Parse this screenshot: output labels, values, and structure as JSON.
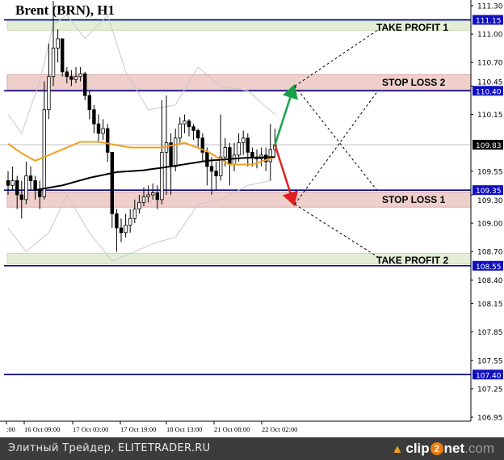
{
  "title": "Brent (BRN), H1",
  "footer": {
    "text": "Элитный Трейдер, ELITETRADER.RU",
    "logo": "clip2net.com",
    "logo_parts": [
      "clip",
      "2",
      "net",
      ".com"
    ]
  },
  "colors": {
    "tp_zone": "#e2efd6",
    "sl_zone": "#efcfcc",
    "level_line": "#00008b",
    "ma_fast": "#f0a020",
    "ma_slow": "#000000",
    "bands": "#c8c8c8",
    "up_arrow": "#1aa04a",
    "down_arrow": "#e02020",
    "price_line": "#c0c0c0"
  },
  "chart_data": {
    "type": "candlestick",
    "title": "Brent (BRN), H1",
    "ylim": [
      106.9,
      111.35
    ],
    "y_ticks": [
      "111.30",
      "111.00",
      "110.70",
      "110.45",
      "110.15",
      "109.83",
      "109.55",
      "109.30",
      "109.00",
      "108.70",
      "108.40",
      "108.15",
      "107.85",
      "107.55",
      "107.25",
      "106.95"
    ],
    "x_ticks": [
      ":00",
      "16 Oct 09:00",
      "17 Oct 03:00",
      "17 Oct 19:00",
      "18 Oct 13:00",
      "21 Oct 08:00",
      "22 Oct 02:00"
    ],
    "current_price": "109.83",
    "first_open": 109.45,
    "close": [
      109.4,
      109.45,
      109.3,
      109.25,
      109.5,
      109.45,
      109.35,
      109.28,
      110.2,
      110.55,
      110.85,
      110.95,
      110.6,
      110.55,
      110.52,
      110.55,
      110.58,
      110.35,
      110.2,
      110.05,
      109.95,
      110.0,
      109.75,
      109.1,
      108.95,
      108.9,
      108.98,
      109.05,
      109.15,
      109.22,
      109.28,
      109.3,
      109.32,
      109.25,
      109.75,
      109.85,
      109.6,
      109.9,
      110.05,
      110.08,
      110.02,
      109.98,
      109.9,
      109.75,
      109.6,
      109.55,
      109.5,
      109.7,
      109.8,
      109.62,
      109.72,
      109.85,
      109.9,
      109.75,
      109.7,
      109.68,
      109.72,
      109.65,
      109.78,
      109.83
    ],
    "high": [
      109.55,
      109.6,
      109.5,
      109.45,
      109.65,
      109.6,
      109.5,
      109.45,
      110.5,
      110.9,
      111.35,
      111.05,
      110.95,
      110.65,
      110.62,
      110.65,
      110.65,
      110.6,
      110.4,
      110.25,
      110.15,
      110.1,
      110.05,
      109.75,
      109.15,
      109.05,
      109.1,
      109.15,
      109.25,
      109.3,
      109.38,
      109.4,
      109.42,
      109.4,
      110.3,
      110.35,
      109.95,
      110.0,
      110.12,
      110.15,
      110.1,
      110.05,
      110.0,
      109.95,
      109.8,
      109.7,
      109.65,
      110.15,
      109.9,
      109.85,
      109.85,
      109.95,
      109.98,
      109.95,
      109.8,
      109.78,
      109.8,
      109.8,
      110.05,
      110.0
    ],
    "low": [
      109.3,
      109.35,
      109.15,
      109.05,
      109.2,
      109.35,
      109.25,
      109.15,
      109.25,
      110.1,
      110.45,
      110.7,
      110.55,
      110.48,
      110.45,
      110.48,
      110.5,
      110.3,
      110.1,
      109.95,
      109.85,
      109.88,
      109.65,
      108.95,
      108.7,
      108.8,
      108.85,
      108.9,
      109.0,
      109.1,
      109.18,
      109.22,
      109.25,
      109.15,
      109.2,
      109.3,
      109.3,
      109.55,
      109.85,
      109.95,
      109.92,
      109.88,
      109.8,
      109.65,
      109.4,
      109.3,
      109.35,
      109.45,
      109.6,
      109.4,
      109.55,
      109.65,
      109.72,
      109.6,
      109.6,
      109.58,
      109.6,
      109.55,
      109.45,
      109.7
    ],
    "indicators": {
      "ma_fast": [
        [
          0,
          109.84
        ],
        [
          3,
          109.74
        ],
        [
          6,
          109.66
        ],
        [
          10,
          109.74
        ],
        [
          16,
          109.86
        ],
        [
          20,
          109.86
        ],
        [
          27,
          109.8
        ],
        [
          34,
          109.8
        ],
        [
          39,
          109.85
        ],
        [
          44,
          109.76
        ],
        [
          49,
          109.62
        ],
        [
          54,
          109.62
        ],
        [
          59,
          109.7
        ]
      ],
      "ma_slow": [
        [
          6,
          109.35
        ],
        [
          12,
          109.4
        ],
        [
          18,
          109.48
        ],
        [
          24,
          109.54
        ],
        [
          30,
          109.56
        ],
        [
          36,
          109.6
        ],
        [
          44,
          109.66
        ],
        [
          52,
          109.69
        ],
        [
          59,
          109.7
        ]
      ],
      "band_upper": [
        [
          0,
          110.15
        ],
        [
          3,
          109.95
        ],
        [
          7,
          110.5
        ],
        [
          10,
          111.1
        ],
        [
          13,
          111.2
        ],
        [
          17,
          110.95
        ],
        [
          22,
          111.2
        ],
        [
          26,
          110.6
        ],
        [
          31,
          110.2
        ],
        [
          37,
          110.25
        ],
        [
          42,
          110.65
        ],
        [
          47,
          110.45
        ],
        [
          53,
          110.4
        ],
        [
          59,
          110.15
        ]
      ],
      "band_lower": [
        [
          0,
          108.95
        ],
        [
          4,
          108.7
        ],
        [
          9,
          108.9
        ],
        [
          13,
          109.3
        ],
        [
          18,
          108.9
        ],
        [
          23,
          108.6
        ],
        [
          28,
          108.7
        ],
        [
          33,
          108.8
        ],
        [
          37,
          108.85
        ],
        [
          42,
          109.2
        ],
        [
          47,
          109.25
        ],
        [
          53,
          109.4
        ],
        [
          58,
          109.45
        ]
      ]
    },
    "levels": [
      {
        "label": "111.15",
        "price": 111.15
      },
      {
        "label": "110.40",
        "price": 110.4
      },
      {
        "label": "109.35",
        "price": 109.35
      },
      {
        "label": "108.55",
        "price": 108.55
      },
      {
        "label": "107.40",
        "price": 107.4
      }
    ],
    "zones": [
      {
        "label": "TAKE PROFIT 1",
        "kind": "tp",
        "from": 111.04,
        "to": 111.14
      },
      {
        "label": "STOP LOSS 2",
        "kind": "sl",
        "from": 110.41,
        "to": 110.57
      },
      {
        "label": "STOP LOSS 1",
        "kind": "sl",
        "from": 109.17,
        "to": 109.33
      },
      {
        "label": "TAKE PROFIT 2",
        "kind": "tp",
        "from": 108.57,
        "to": 108.68
      }
    ],
    "scenarios": [
      {
        "direction": "up",
        "from": 109.83,
        "to": 110.45
      },
      {
        "direction": "down",
        "from": 109.83,
        "to": 109.2
      }
    ]
  }
}
